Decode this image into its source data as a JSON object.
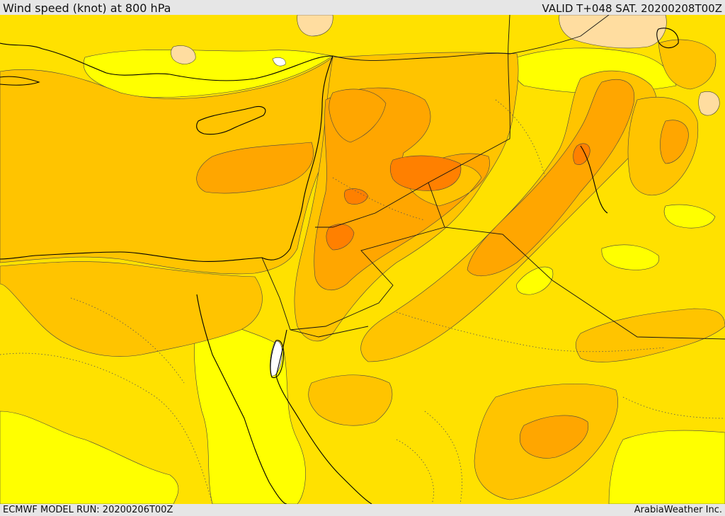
{
  "header": {
    "title": "Wind speed (knot) at 800 hPa",
    "valid": "VALID T+048 SAT. 20200208T00Z"
  },
  "footer": {
    "model_run": "ECMWF MODEL RUN: 20200206T00Z",
    "credit": "ArabiaWeather Inc."
  },
  "map": {
    "colors": {
      "level_1": "#ffff00",
      "level_2": "#ffe100",
      "level_3": "#ffc400",
      "level_4": "#ffa600",
      "level_5": "#ff8000",
      "level_6": "#ffdda0",
      "level_7": "#ffffff",
      "coastline": "#000000",
      "border": "#000000"
    }
  }
}
